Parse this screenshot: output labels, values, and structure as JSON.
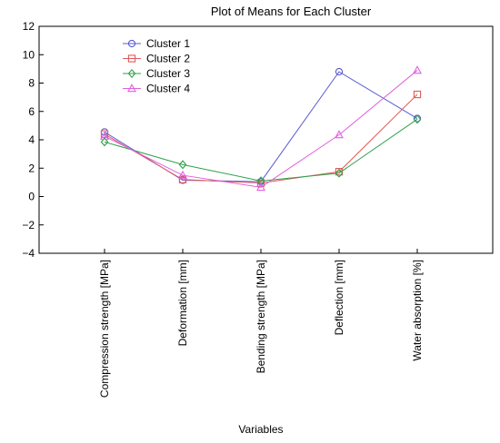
{
  "chart_data": {
    "type": "line",
    "title": "Plot of Means for Each Cluster",
    "xlabel": "Variables",
    "ylabel": "",
    "ylim": [
      -4,
      12
    ],
    "yticks": [
      -4,
      -2,
      0,
      2,
      4,
      6,
      8,
      10,
      12
    ],
    "grid": false,
    "legend_position": "top-left",
    "categories": [
      "Compression strength [MPa]",
      "Deformation [mm]",
      "Bending strength [MPa]",
      "Deflection [mm]",
      "Water absorption [%]"
    ],
    "series": [
      {
        "name": "Cluster  1",
        "color": "#5a5ad0",
        "marker": "circle",
        "values": [
          4.55,
          1.15,
          1.05,
          8.8,
          5.5
        ]
      },
      {
        "name": "Cluster  2",
        "color": "#e05a5a",
        "marker": "square",
        "values": [
          4.4,
          1.2,
          0.95,
          1.75,
          7.2
        ]
      },
      {
        "name": "Cluster  3",
        "color": "#2ea04a",
        "marker": "diamond",
        "values": [
          3.85,
          2.25,
          1.1,
          1.65,
          5.45
        ]
      },
      {
        "name": "Cluster  4",
        "color": "#e060e0",
        "marker": "triangle",
        "values": [
          4.25,
          1.5,
          0.65,
          4.35,
          8.9
        ]
      }
    ]
  }
}
